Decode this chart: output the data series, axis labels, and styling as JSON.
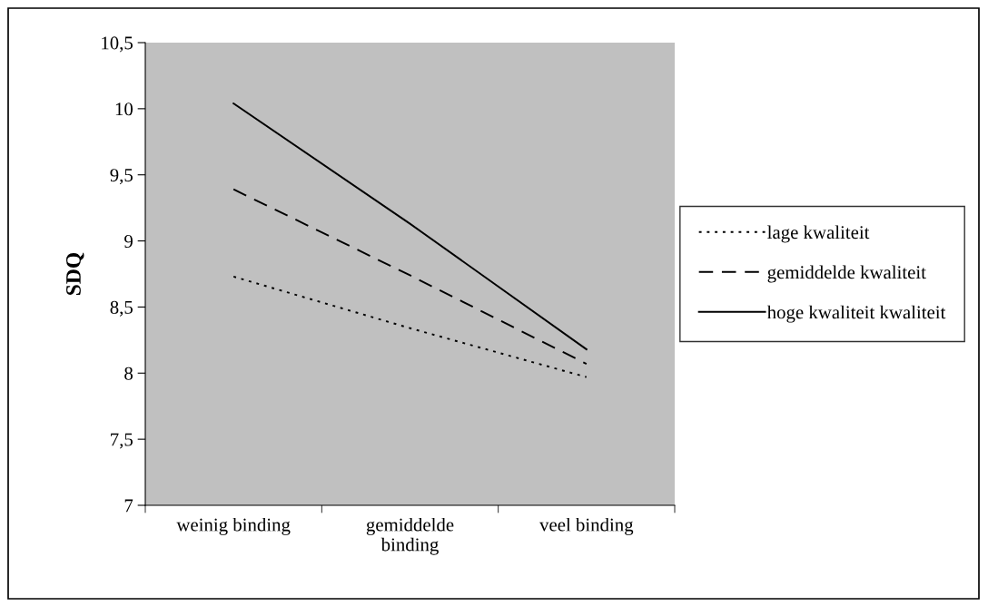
{
  "chart_data": {
    "type": "line",
    "ylabel": "SDQ",
    "categories": [
      "weinig binding",
      "gemiddelde binding",
      "veel binding"
    ],
    "series": [
      {
        "name": "lage kwaliteit",
        "color": "#000000",
        "line_style": "dotted",
        "values": [
          8.73,
          8.34,
          7.97
        ]
      },
      {
        "name": "gemiddelde kwaliteit",
        "color": "#000000",
        "line_style": "dashed",
        "values": [
          9.39,
          8.74,
          8.07
        ]
      },
      {
        "name": "hoge kwaliteit kwaliteit",
        "color": "#000000",
        "line_style": "solid",
        "values": [
          10.04,
          9.13,
          8.18
        ]
      }
    ],
    "ylim": [
      7,
      10.5
    ],
    "yticks": [
      {
        "value": 7,
        "label": "7"
      },
      {
        "value": 7.5,
        "label": "7,5"
      },
      {
        "value": 8,
        "label": "8"
      },
      {
        "value": 8.5,
        "label": "8,5"
      },
      {
        "value": 9,
        "label": "9"
      },
      {
        "value": 9.5,
        "label": "9,5"
      },
      {
        "value": 10,
        "label": "10"
      },
      {
        "value": 10.5,
        "label": "10,5"
      }
    ],
    "grid": false,
    "legend": "right",
    "marker": "none"
  }
}
